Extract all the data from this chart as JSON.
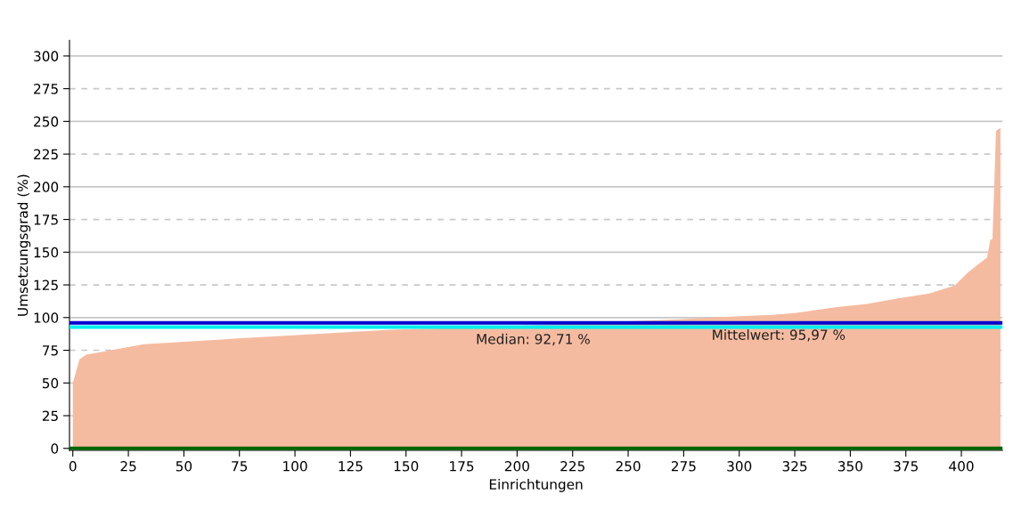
{
  "chart_data": {
    "type": "area",
    "xlabel": "Einrichtungen",
    "ylabel": "Umsetzungsgrad (%)",
    "x": [
      0,
      3,
      6,
      32,
      74,
      120,
      143,
      167,
      189,
      273,
      289,
      315,
      325,
      344,
      357.5,
      372,
      385.6,
      397,
      403,
      411.6,
      413,
      414,
      415.6,
      417.6
    ],
    "series": [
      {
        "color": "#f5bba0",
        "values": [
          50,
          68,
          71.6,
          79.7,
          84,
          88.5,
          90.7,
          91.9,
          93,
          98.6,
          100.2,
          102,
          103.5,
          108,
          110.4,
          114.8,
          118.4,
          124.5,
          134.6,
          145.9,
          159.4,
          160,
          242.7,
          245
        ]
      }
    ],
    "xlim": [
      -1.5,
      418.5
    ],
    "ylim": [
      -1.5,
      312
    ],
    "xticks": [
      0,
      25,
      50,
      75,
      100,
      125,
      150,
      175,
      200,
      225,
      250,
      275,
      300,
      325,
      350,
      375,
      400
    ],
    "yticks": [
      0,
      25,
      50,
      75,
      100,
      125,
      150,
      175,
      200,
      225,
      250,
      275,
      300
    ],
    "grid": "y",
    "ref_lines": [
      {
        "axis": "y",
        "value": 92.71,
        "label": "Median: 92,71 %",
        "color": "#00f0f0"
      },
      {
        "axis": "y",
        "value": 95.97,
        "label": "Mittelwert: 95,97 %",
        "color": "#0000d0"
      },
      {
        "axis": "y",
        "value": 0,
        "color": "#006400"
      }
    ]
  }
}
